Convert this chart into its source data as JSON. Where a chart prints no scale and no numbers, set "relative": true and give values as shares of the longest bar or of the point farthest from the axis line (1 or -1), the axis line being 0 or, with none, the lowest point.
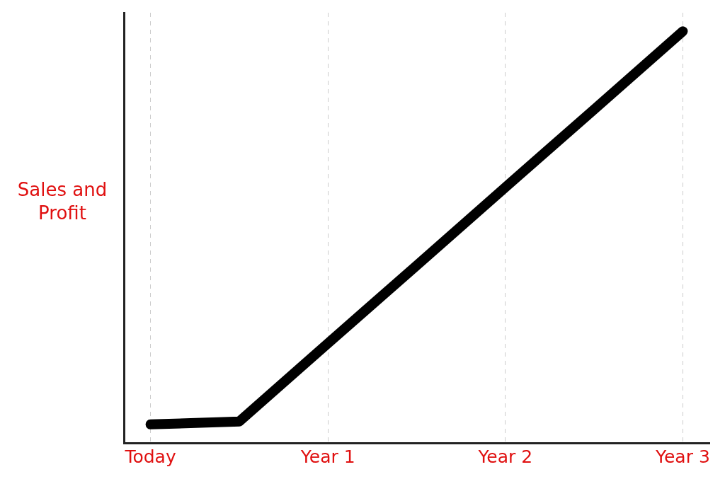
{
  "chart_data": {
    "type": "line",
    "ylabel": "Sales and Profit",
    "relative": true,
    "categories": [
      "Today",
      null,
      "Year 1",
      null,
      "Year 2",
      null,
      "Year 3"
    ],
    "series": [
      {
        "color": "#000000",
        "values": [
          0.045,
          0.052,
          0.242,
          0.431,
          0.621,
          0.81,
          1
        ]
      }
    ],
    "grid": "x",
    "legend": false,
    "marker": "none",
    "line_style": "solid"
  }
}
